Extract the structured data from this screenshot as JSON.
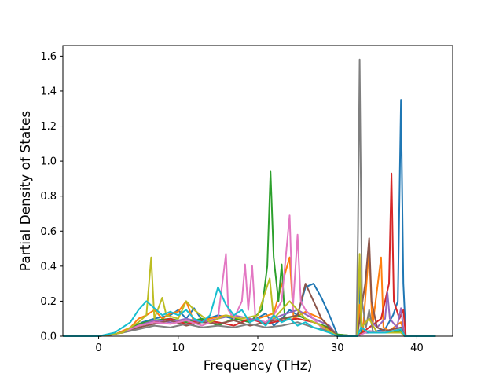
{
  "chart_data": {
    "type": "line",
    "title": "",
    "xlabel": "Frequency (THz)",
    "ylabel": "Partial Density of States",
    "xlim": [
      -4.5,
      44.5
    ],
    "ylim": [
      0,
      1.66
    ],
    "xticks": [
      0,
      10,
      20,
      30,
      40
    ],
    "yticks": [
      0.0,
      0.2,
      0.4,
      0.6,
      0.8,
      1.0,
      1.2,
      1.4,
      1.6
    ],
    "xtick_labels": [
      "0",
      "10",
      "20",
      "30",
      "40"
    ],
    "ytick_labels": [
      "0.0",
      "0.2",
      "0.4",
      "0.6",
      "0.8",
      "1.0",
      "1.2",
      "1.4",
      "1.6"
    ],
    "grid": false,
    "legend": false,
    "series": [
      {
        "color": "#1f77b4",
        "points": [
          [
            -4.4,
            0
          ],
          [
            0,
            0
          ],
          [
            2,
            0.01
          ],
          [
            4,
            0.04
          ],
          [
            5.5,
            0.08
          ],
          [
            7,
            0.1
          ],
          [
            9,
            0.12
          ],
          [
            10,
            0.15
          ],
          [
            11,
            0.1
          ],
          [
            12,
            0.16
          ],
          [
            13,
            0.09
          ],
          [
            15,
            0.12
          ],
          [
            17,
            0.1
          ],
          [
            19,
            0.08
          ],
          [
            21,
            0.13
          ],
          [
            22,
            0.06
          ],
          [
            23,
            0.1
          ],
          [
            24,
            0.15
          ],
          [
            25,
            0.12
          ],
          [
            26,
            0.28
          ],
          [
            27,
            0.3
          ],
          [
            28,
            0.22
          ],
          [
            29,
            0.12
          ],
          [
            30,
            0.01
          ],
          [
            32.5,
            0
          ],
          [
            32.7,
            0.35
          ],
          [
            33,
            0.02
          ],
          [
            34,
            0.02
          ],
          [
            35,
            0.03
          ],
          [
            36,
            0.04
          ],
          [
            37,
            0.12
          ],
          [
            37.6,
            0.2
          ],
          [
            38,
            1.35
          ],
          [
            38.3,
            0.3
          ],
          [
            38.6,
            0
          ],
          [
            42.3,
            0
          ]
        ]
      },
      {
        "color": "#ff7f0e",
        "points": [
          [
            -4.4,
            0
          ],
          [
            0,
            0
          ],
          [
            2,
            0.01
          ],
          [
            4,
            0.05
          ],
          [
            5,
            0.1
          ],
          [
            6,
            0.12
          ],
          [
            7,
            0.15
          ],
          [
            8,
            0.1
          ],
          [
            9,
            0.13
          ],
          [
            10,
            0.14
          ],
          [
            11,
            0.2
          ],
          [
            12,
            0.08
          ],
          [
            14,
            0.1
          ],
          [
            16,
            0.12
          ],
          [
            18,
            0.09
          ],
          [
            20,
            0.1
          ],
          [
            22,
            0.13
          ],
          [
            24,
            0.45
          ],
          [
            24.5,
            0.1
          ],
          [
            26,
            0.14
          ],
          [
            28,
            0.1
          ],
          [
            30,
            0.01
          ],
          [
            32.5,
            0
          ],
          [
            32.8,
            0.18
          ],
          [
            33.2,
            0.02
          ],
          [
            34,
            0.5
          ],
          [
            34.4,
            0.05
          ],
          [
            35.5,
            0.45
          ],
          [
            35.8,
            0.05
          ],
          [
            36.5,
            0.03
          ],
          [
            38,
            0.08
          ],
          [
            38.5,
            0
          ],
          [
            42.3,
            0
          ]
        ]
      },
      {
        "color": "#2ca02c",
        "points": [
          [
            -4.4,
            0
          ],
          [
            0,
            0
          ],
          [
            3,
            0.02
          ],
          [
            5,
            0.07
          ],
          [
            7,
            0.09
          ],
          [
            9,
            0.1
          ],
          [
            11,
            0.08
          ],
          [
            13,
            0.1
          ],
          [
            15,
            0.06
          ],
          [
            17,
            0.1
          ],
          [
            19,
            0.08
          ],
          [
            20.5,
            0.15
          ],
          [
            21.2,
            0.4
          ],
          [
            21.6,
            0.94
          ],
          [
            22,
            0.45
          ],
          [
            22.6,
            0.2
          ],
          [
            23,
            0.41
          ],
          [
            23.4,
            0.1
          ],
          [
            25,
            0.12
          ],
          [
            27,
            0.08
          ],
          [
            29,
            0.05
          ],
          [
            30,
            0.01
          ],
          [
            32.5,
            0
          ],
          [
            33,
            0.02
          ],
          [
            34,
            0.03
          ],
          [
            36,
            0.02
          ],
          [
            38,
            0.03
          ],
          [
            38.5,
            0
          ],
          [
            42.3,
            0
          ]
        ]
      },
      {
        "color": "#d62728",
        "points": [
          [
            -4.4,
            0
          ],
          [
            0,
            0
          ],
          [
            3,
            0.02
          ],
          [
            5,
            0.06
          ],
          [
            7,
            0.08
          ],
          [
            9,
            0.1
          ],
          [
            11,
            0.07
          ],
          [
            13,
            0.09
          ],
          [
            15,
            0.08
          ],
          [
            17,
            0.06
          ],
          [
            19,
            0.1
          ],
          [
            21,
            0.07
          ],
          [
            23,
            0.09
          ],
          [
            25,
            0.1
          ],
          [
            27,
            0.08
          ],
          [
            29,
            0.04
          ],
          [
            30,
            0
          ],
          [
            32.5,
            0
          ],
          [
            34,
            0.05
          ],
          [
            35.5,
            0.1
          ],
          [
            36.5,
            0.3
          ],
          [
            36.8,
            0.93
          ],
          [
            37.1,
            0.2
          ],
          [
            37.8,
            0.1
          ],
          [
            38.3,
            0.15
          ],
          [
            38.6,
            0
          ],
          [
            42.3,
            0
          ]
        ]
      },
      {
        "color": "#9467bd",
        "points": [
          [
            -4.4,
            0
          ],
          [
            0,
            0
          ],
          [
            3,
            0.02
          ],
          [
            5,
            0.06
          ],
          [
            7,
            0.09
          ],
          [
            9,
            0.08
          ],
          [
            11,
            0.1
          ],
          [
            13,
            0.08
          ],
          [
            15,
            0.1
          ],
          [
            17,
            0.12
          ],
          [
            19,
            0.1
          ],
          [
            21,
            0.08
          ],
          [
            23,
            0.12
          ],
          [
            25,
            0.15
          ],
          [
            27,
            0.1
          ],
          [
            29,
            0.06
          ],
          [
            30,
            0
          ],
          [
            32.5,
            0
          ],
          [
            33,
            0.05
          ],
          [
            34,
            0.1
          ],
          [
            35,
            0.05
          ],
          [
            36,
            0.1
          ],
          [
            36.3,
            0.25
          ],
          [
            36.6,
            0.1
          ],
          [
            37.5,
            0.05
          ],
          [
            38,
            0.16
          ],
          [
            38.4,
            0
          ],
          [
            42.3,
            0
          ]
        ]
      },
      {
        "color": "#8c564b",
        "points": [
          [
            -4.4,
            0
          ],
          [
            0,
            0
          ],
          [
            3,
            0.02
          ],
          [
            5,
            0.05
          ],
          [
            7,
            0.07
          ],
          [
            9,
            0.09
          ],
          [
            11,
            0.06
          ],
          [
            13,
            0.08
          ],
          [
            15,
            0.07
          ],
          [
            17,
            0.09
          ],
          [
            19,
            0.06
          ],
          [
            21,
            0.08
          ],
          [
            23,
            0.1
          ],
          [
            25,
            0.12
          ],
          [
            26,
            0.3
          ],
          [
            27,
            0.2
          ],
          [
            28,
            0.1
          ],
          [
            29,
            0.05
          ],
          [
            30,
            0
          ],
          [
            32.5,
            0
          ],
          [
            33.5,
            0.3
          ],
          [
            34,
            0.56
          ],
          [
            34.3,
            0.2
          ],
          [
            35,
            0.05
          ],
          [
            36,
            0.03
          ],
          [
            38,
            0.05
          ],
          [
            38.5,
            0
          ],
          [
            42.3,
            0
          ]
        ]
      },
      {
        "color": "#e377c2",
        "points": [
          [
            -4.4,
            0
          ],
          [
            0,
            0
          ],
          [
            3,
            0.02
          ],
          [
            5,
            0.06
          ],
          [
            7,
            0.08
          ],
          [
            9,
            0.07
          ],
          [
            11,
            0.09
          ],
          [
            13,
            0.06
          ],
          [
            15,
            0.1
          ],
          [
            16,
            0.47
          ],
          [
            16.3,
            0.15
          ],
          [
            17,
            0.1
          ],
          [
            18,
            0.2
          ],
          [
            18.4,
            0.41
          ],
          [
            18.8,
            0.15
          ],
          [
            19.3,
            0.4
          ],
          [
            19.7,
            0.1
          ],
          [
            21,
            0.08
          ],
          [
            22,
            0.12
          ],
          [
            23,
            0.2
          ],
          [
            24,
            0.69
          ],
          [
            24.4,
            0.15
          ],
          [
            25,
            0.58
          ],
          [
            25.4,
            0.2
          ],
          [
            26,
            0.15
          ],
          [
            27,
            0.1
          ],
          [
            28,
            0.05
          ],
          [
            30,
            0
          ],
          [
            32.5,
            0
          ],
          [
            34,
            0.03
          ],
          [
            36,
            0.02
          ],
          [
            38,
            0.04
          ],
          [
            38.5,
            0
          ],
          [
            42.3,
            0
          ]
        ]
      },
      {
        "color": "#7f7f7f",
        "points": [
          [
            -4.4,
            0
          ],
          [
            0,
            0
          ],
          [
            3,
            0.02
          ],
          [
            5,
            0.04
          ],
          [
            7,
            0.06
          ],
          [
            9,
            0.05
          ],
          [
            11,
            0.07
          ],
          [
            13,
            0.05
          ],
          [
            15,
            0.06
          ],
          [
            17,
            0.05
          ],
          [
            19,
            0.07
          ],
          [
            21,
            0.05
          ],
          [
            23,
            0.06
          ],
          [
            25,
            0.08
          ],
          [
            27,
            0.05
          ],
          [
            29,
            0.03
          ],
          [
            30,
            0
          ],
          [
            32.4,
            0
          ],
          [
            32.6,
            0.6
          ],
          [
            32.8,
            1.58
          ],
          [
            33.1,
            0.2
          ],
          [
            33.6,
            0.05
          ],
          [
            34,
            0.15
          ],
          [
            34.5,
            0.02
          ],
          [
            36,
            0.02
          ],
          [
            38,
            0.02
          ],
          [
            38.5,
            0
          ],
          [
            42.3,
            0
          ]
        ]
      },
      {
        "color": "#bcbd22",
        "points": [
          [
            -4.4,
            0
          ],
          [
            0,
            0
          ],
          [
            3,
            0.02
          ],
          [
            5,
            0.08
          ],
          [
            6,
            0.12
          ],
          [
            6.6,
            0.45
          ],
          [
            7,
            0.1
          ],
          [
            8,
            0.22
          ],
          [
            8.5,
            0.12
          ],
          [
            10,
            0.1
          ],
          [
            11,
            0.2
          ],
          [
            12,
            0.15
          ],
          [
            14,
            0.08
          ],
          [
            16,
            0.12
          ],
          [
            18,
            0.1
          ],
          [
            20,
            0.12
          ],
          [
            21.5,
            0.33
          ],
          [
            22,
            0.1
          ],
          [
            24,
            0.2
          ],
          [
            25,
            0.15
          ],
          [
            26,
            0.1
          ],
          [
            28,
            0.06
          ],
          [
            30,
            0
          ],
          [
            32.5,
            0
          ],
          [
            32.8,
            0.47
          ],
          [
            33,
            0.05
          ],
          [
            34,
            0.1
          ],
          [
            35,
            0.02
          ],
          [
            38,
            0.02
          ],
          [
            38.5,
            0
          ],
          [
            42.3,
            0
          ]
        ]
      },
      {
        "color": "#17becf",
        "points": [
          [
            -4.4,
            0
          ],
          [
            0,
            0
          ],
          [
            2,
            0.02
          ],
          [
            4,
            0.08
          ],
          [
            5,
            0.15
          ],
          [
            6,
            0.2
          ],
          [
            7,
            0.16
          ],
          [
            8,
            0.12
          ],
          [
            9,
            0.14
          ],
          [
            10,
            0.12
          ],
          [
            11,
            0.15
          ],
          [
            12,
            0.1
          ],
          [
            13,
            0.08
          ],
          [
            14,
            0.12
          ],
          [
            15,
            0.28
          ],
          [
            16,
            0.18
          ],
          [
            17,
            0.12
          ],
          [
            18,
            0.15
          ],
          [
            19,
            0.08
          ],
          [
            20,
            0.1
          ],
          [
            21,
            0.06
          ],
          [
            22,
            0.12
          ],
          [
            23,
            0.08
          ],
          [
            24,
            0.1
          ],
          [
            25,
            0.06
          ],
          [
            26,
            0.08
          ],
          [
            27,
            0.05
          ],
          [
            29,
            0.02
          ],
          [
            30,
            0
          ],
          [
            32.5,
            0
          ],
          [
            33,
            0.05
          ],
          [
            34,
            0.02
          ],
          [
            36,
            0.02
          ],
          [
            38,
            0.04
          ],
          [
            38.5,
            0
          ],
          [
            42.3,
            0
          ]
        ]
      }
    ]
  }
}
